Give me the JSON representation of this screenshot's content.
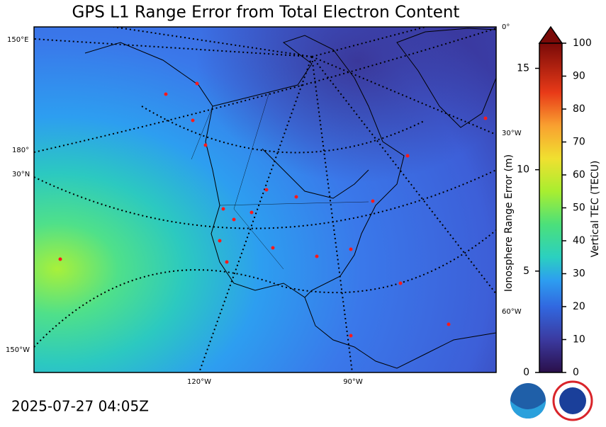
{
  "title": "GPS L1 Range Error from Total Electron Content",
  "timestamp": "2025-07-27 04:05Z",
  "graticule_labels": [
    "150°E",
    "180°",
    "30°N",
    "150°W",
    "120°W",
    "90°W",
    "0°",
    "30°W",
    "60°W"
  ],
  "colorbar": {
    "left_label": "Ionosphere Range Error (m)",
    "left_lim": [
      0,
      16.24
    ],
    "left_ticks": [
      0,
      5,
      10,
      15
    ],
    "right_label": "Vertical TEC (TECU)",
    "right_lim": [
      0,
      100
    ],
    "right_ticks": [
      0,
      10,
      20,
      30,
      40,
      50,
      60,
      70,
      80,
      90,
      100
    ]
  }
}
